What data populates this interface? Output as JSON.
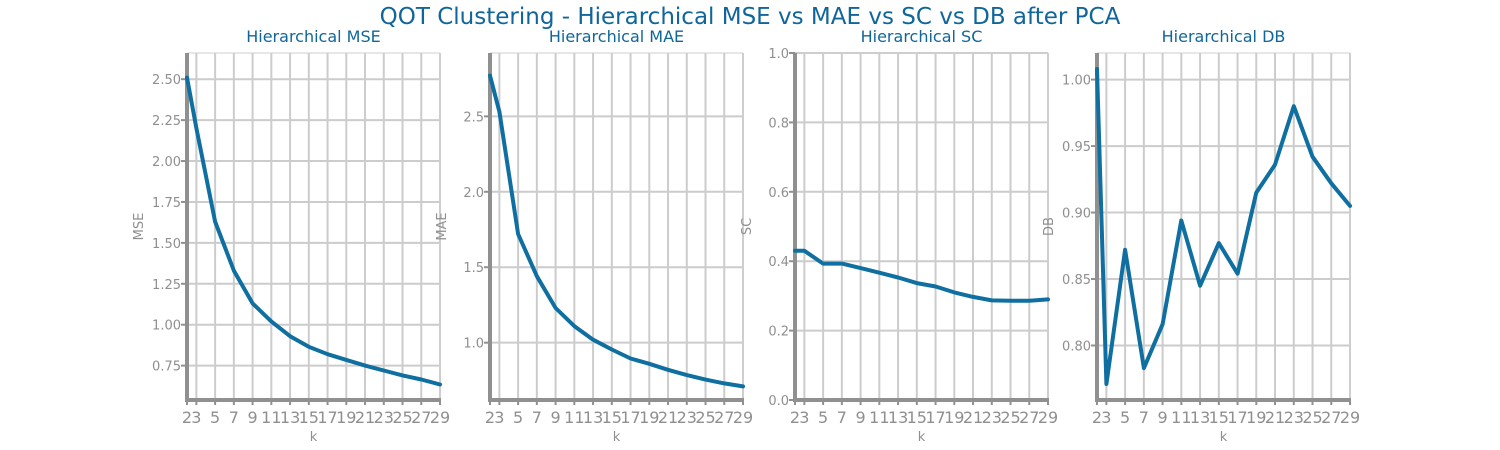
{
  "figure": {
    "title": "QOT Clustering - Hierarchical MSE vs MAE vs SC vs DB after PCA"
  },
  "colors": {
    "line": "#0f6fa0",
    "title": "#10669a",
    "grid": "#cccccc",
    "axis": "#909090",
    "label": "#8f8f8f"
  },
  "chart_data": [
    {
      "type": "line",
      "title": "Hierarchical MSE",
      "xlabel": "k",
      "ylabel": "MSE",
      "x": [
        2,
        3,
        5,
        7,
        9,
        11,
        13,
        15,
        17,
        19,
        21,
        23,
        25,
        27,
        29
      ],
      "xticks": [
        2,
        3,
        5,
        7,
        9,
        11,
        13,
        15,
        17,
        19,
        21,
        23,
        25,
        27,
        29
      ],
      "y": [
        2.51,
        2.2,
        1.63,
        1.33,
        1.13,
        1.02,
        0.93,
        0.865,
        0.82,
        0.785,
        0.75,
        0.72,
        0.69,
        0.665,
        0.635
      ],
      "ylim": [
        0.54,
        2.66
      ],
      "yticks": [
        0.75,
        1.0,
        1.25,
        1.5,
        1.75,
        2.0,
        2.25,
        2.5
      ],
      "ytick_labels": [
        "0.75",
        "1.00",
        "1.25",
        "1.50",
        "1.75",
        "2.00",
        "2.25",
        "2.50"
      ],
      "grid": true
    },
    {
      "type": "line",
      "title": "Hierarchical MAE",
      "xlabel": "k",
      "ylabel": "MAE",
      "x": [
        2,
        3,
        5,
        7,
        9,
        11,
        13,
        15,
        17,
        19,
        21,
        23,
        25,
        27,
        29
      ],
      "xticks": [
        2,
        3,
        5,
        7,
        9,
        11,
        13,
        15,
        17,
        19,
        21,
        23,
        25,
        27,
        29
      ],
      "y": [
        2.77,
        2.53,
        1.72,
        1.44,
        1.23,
        1.11,
        1.02,
        0.955,
        0.895,
        0.86,
        0.82,
        0.785,
        0.755,
        0.73,
        0.71
      ],
      "ylim": [
        0.62,
        2.92
      ],
      "yticks": [
        1.0,
        1.5,
        2.0,
        2.5
      ],
      "ytick_labels": [
        "1.0",
        "1.5",
        "2.0",
        "2.5"
      ],
      "grid": true
    },
    {
      "type": "line",
      "title": "Hierarchical SC",
      "xlabel": "k",
      "ylabel": "SC",
      "x": [
        2,
        3,
        5,
        7,
        9,
        11,
        13,
        15,
        17,
        19,
        21,
        23,
        25,
        27,
        29
      ],
      "xticks": [
        2,
        3,
        5,
        7,
        9,
        11,
        13,
        15,
        17,
        19,
        21,
        23,
        25,
        27,
        29
      ],
      "y": [
        0.43,
        0.43,
        0.393,
        0.393,
        0.38,
        0.367,
        0.353,
        0.337,
        0.327,
        0.31,
        0.297,
        0.287,
        0.286,
        0.286,
        0.29
      ],
      "ylim": [
        0.0,
        1.0
      ],
      "yticks": [
        0.0,
        0.2,
        0.4,
        0.6,
        0.8,
        1.0
      ],
      "ytick_labels": [
        "0.0",
        "0.2",
        "0.4",
        "0.6",
        "0.8",
        "1.0"
      ],
      "grid": true
    },
    {
      "type": "line",
      "title": "Hierarchical DB",
      "xlabel": "k",
      "ylabel": "DB",
      "x": [
        2,
        3,
        5,
        7,
        9,
        11,
        13,
        15,
        17,
        19,
        21,
        23,
        25,
        27,
        29
      ],
      "xticks": [
        2,
        3,
        5,
        7,
        9,
        11,
        13,
        15,
        17,
        19,
        21,
        23,
        25,
        27,
        29
      ],
      "y": [
        1.008,
        0.771,
        0.872,
        0.783,
        0.816,
        0.894,
        0.845,
        0.877,
        0.854,
        0.915,
        0.936,
        0.98,
        0.942,
        0.922,
        0.905
      ],
      "ylim": [
        0.759,
        1.02
      ],
      "yticks": [
        0.8,
        0.85,
        0.9,
        0.95,
        1.0
      ],
      "ytick_labels": [
        "0.80",
        "0.85",
        "0.90",
        "0.95",
        "1.00"
      ],
      "grid": true
    }
  ]
}
